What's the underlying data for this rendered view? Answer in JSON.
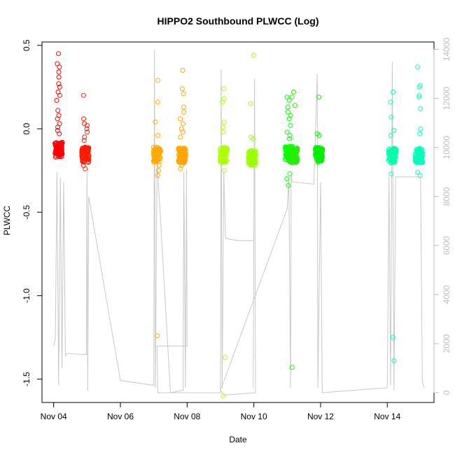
{
  "chart_data": {
    "type": "scatter",
    "title": "HIPPO2 Southbound PLWCC (Log)",
    "xlabel": "Date",
    "ylabel": "PLWCC",
    "x_ticks": [
      "Nov 04",
      "Nov 06",
      "Nov 08",
      "Nov 10",
      "Nov 12",
      "Nov 14"
    ],
    "x_tick_values": [
      0,
      2,
      4,
      6,
      8,
      10
    ],
    "xlim": [
      -0.35,
      11.4
    ],
    "y_ticks": [
      "-1.5",
      "-1.0",
      "-0.5",
      "0.0",
      "0.5"
    ],
    "y_tick_values": [
      -1.5,
      -1.0,
      -0.5,
      0.0,
      0.5
    ],
    "ylim": [
      -1.64,
      0.52
    ],
    "y2_ticks": [
      "0",
      "2000",
      "4000",
      "6000",
      "8000",
      "10000",
      "12000",
      "14000"
    ],
    "y2_tick_values": [
      0,
      2000,
      4000,
      6000,
      8000,
      10000,
      12000,
      14000
    ],
    "y2lim": [
      -400,
      14300
    ],
    "y2_color": "#bdbdbd",
    "altitude_color": "#c8c8c8",
    "grid": false,
    "clusters": [
      {
        "x": 0.15,
        "color": "#ff0000",
        "base": -0.125,
        "outliers": [
          0.45,
          0.39,
          0.37,
          0.34,
          0.31,
          0.27,
          0.25,
          0.22,
          0.2,
          0.17,
          0.11,
          0.08,
          0.06,
          0.03,
          0.01,
          -0.01,
          -0.03
        ]
      },
      {
        "x": 0.95,
        "color": "#ff1a00",
        "base": -0.155,
        "outliers": [
          0.2,
          0.06,
          0.03,
          0.02,
          0.0,
          -0.02,
          -0.05,
          -0.07,
          -0.22,
          -0.24
        ]
      },
      {
        "x": 3.1,
        "color": "#ffaa00",
        "base": -0.155,
        "outliers": [
          0.29,
          0.16,
          0.04,
          -0.04,
          -0.22,
          -0.25,
          -0.28,
          -1.24
        ]
      },
      {
        "x": 3.85,
        "color": "#ffa500",
        "base": -0.16,
        "outliers": [
          0.35,
          0.24,
          0.21,
          0.13,
          0.1,
          0.06,
          0.03,
          0.0,
          -0.02,
          -0.05,
          -0.22,
          -0.24
        ]
      },
      {
        "x": 5.1,
        "color": "#aaff00",
        "base": -0.155,
        "outliers": [
          0.24,
          0.18,
          0.16,
          0.04,
          0.01,
          -0.02,
          -0.25,
          -1.37,
          -1.6
        ]
      },
      {
        "x": 5.95,
        "color": "#99ff00",
        "base": -0.175,
        "outliers": [
          0.44,
          0.15,
          -0.05,
          -0.06
        ]
      },
      {
        "x": 7.05,
        "color": "#00ff00",
        "base": -0.15,
        "outliers": [
          0.19,
          0.17,
          0.13,
          0.1,
          0.08,
          0.06,
          0.02,
          -0.02,
          -0.04,
          -0.06,
          -0.27,
          -0.3,
          -0.34
        ]
      },
      {
        "x": 7.2,
        "color": "#22ee00",
        "base": -0.16,
        "outliers": [
          0.22,
          0.19,
          0.14,
          -1.43
        ]
      },
      {
        "x": 7.95,
        "color": "#00ee00",
        "base": -0.155,
        "outliers": [
          0.19,
          -0.03,
          -0.04
        ]
      },
      {
        "x": 10.15,
        "color": "#00ffaa",
        "base": -0.16,
        "outliers": [
          0.22,
          0.16,
          0.07,
          -0.01,
          -0.04,
          -0.27,
          -1.25,
          -1.39
        ]
      },
      {
        "x": 10.95,
        "color": "#00ffbb",
        "base": -0.16,
        "outliers": [
          0.37,
          0.26,
          0.25,
          0.2,
          0.19,
          0.12,
          0.0,
          -0.03,
          -0.26,
          -0.28
        ]
      }
    ],
    "altitude_path": [
      [
        0.0,
        1900
      ],
      [
        0.05,
        2200
      ],
      [
        0.1,
        9000
      ],
      [
        0.15,
        300
      ],
      [
        0.2,
        8800
      ],
      [
        0.25,
        1000
      ],
      [
        0.3,
        8600
      ],
      [
        0.35,
        1500
      ],
      [
        0.4,
        1600
      ],
      [
        0.98,
        1550
      ],
      [
        1.0,
        9000
      ],
      [
        1.02,
        100
      ],
      [
        1.05,
        8000
      ],
      [
        2.0,
        500
      ],
      [
        3.0,
        300
      ],
      [
        3.02,
        14000
      ],
      [
        3.05,
        200
      ],
      [
        3.1,
        9500
      ],
      [
        3.5,
        0
      ],
      [
        3.88,
        100
      ],
      [
        3.9,
        9000
      ],
      [
        3.95,
        200
      ],
      [
        3.98,
        9100
      ],
      [
        4.0,
        1900
      ],
      [
        3.1,
        1900
      ],
      [
        3.12,
        0
      ],
      [
        5.0,
        0
      ],
      [
        5.02,
        13200
      ],
      [
        5.05,
        200
      ],
      [
        5.1,
        9000
      ],
      [
        5.15,
        6300
      ],
      [
        5.5,
        6200
      ],
      [
        6.0,
        6200
      ],
      [
        5.98,
        200
      ],
      [
        6.02,
        12800
      ],
      [
        6.05,
        0
      ],
      [
        5.1,
        -100
      ],
      [
        5.0,
        100
      ],
      [
        7.0,
        7500
      ],
      [
        7.05,
        8700
      ],
      [
        7.1,
        200
      ],
      [
        7.12,
        8900
      ],
      [
        7.15,
        8600
      ],
      [
        7.8,
        8500
      ],
      [
        7.9,
        13000
      ],
      [
        7.92,
        200
      ],
      [
        8.0,
        8600
      ],
      [
        8.05,
        0
      ],
      [
        10.0,
        200
      ],
      [
        10.05,
        8800
      ],
      [
        10.1,
        300
      ],
      [
        10.15,
        13500
      ],
      [
        10.2,
        100
      ],
      [
        10.25,
        8800
      ],
      [
        11.0,
        8800
      ],
      [
        11.05,
        500
      ],
      [
        11.1,
        200
      ]
    ]
  }
}
